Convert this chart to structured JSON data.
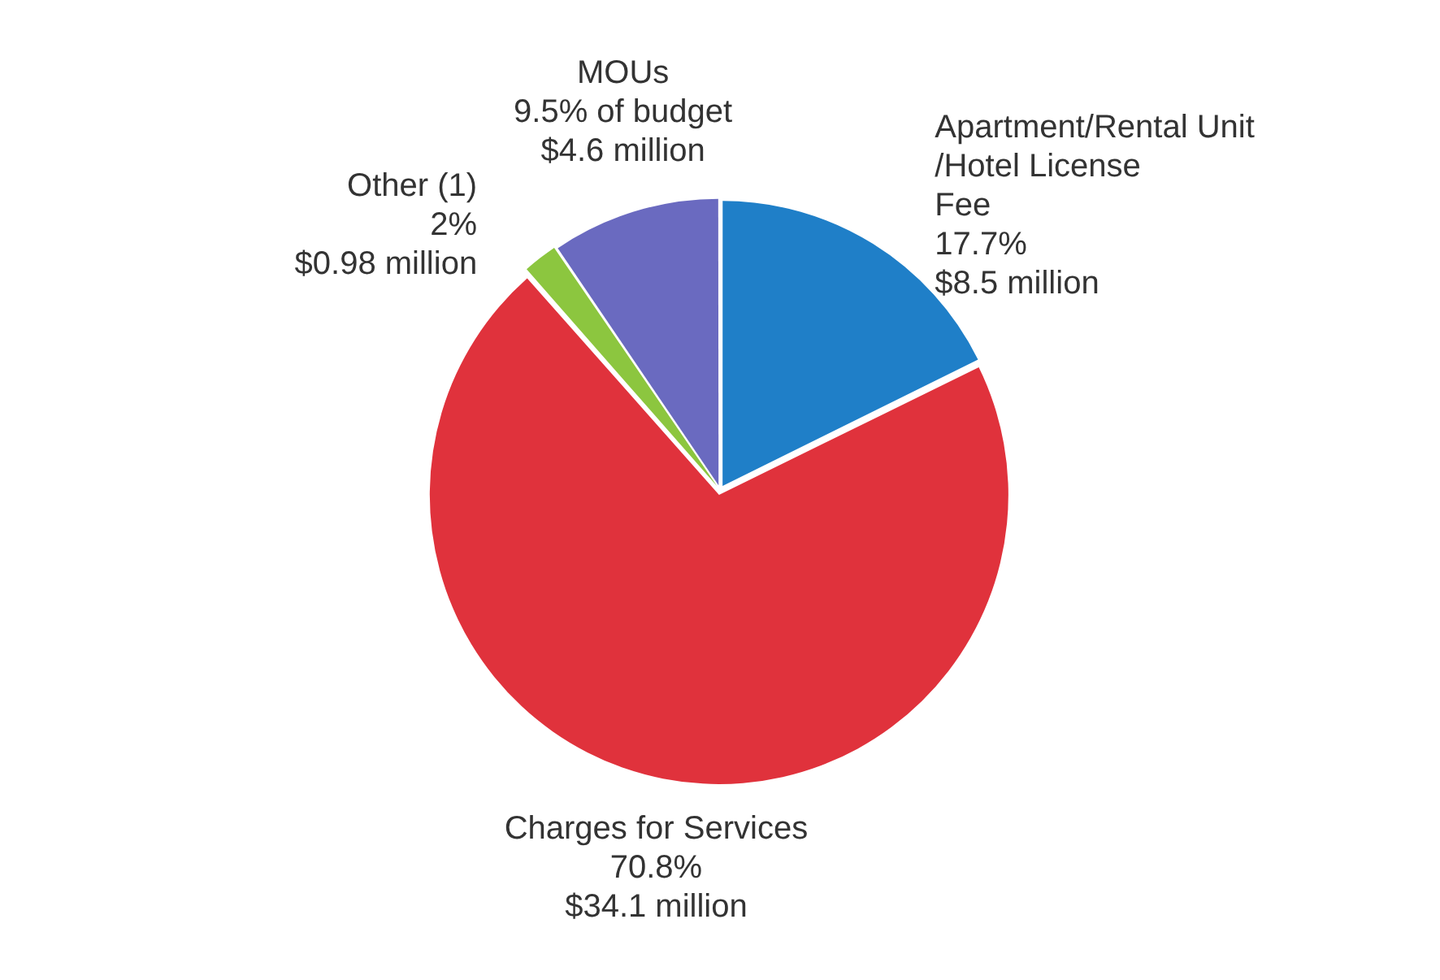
{
  "chart_data": {
    "type": "pie",
    "categories": [
      "Apartment/Rental Unit/Hotel License Fee",
      "Charges for Services",
      "Other (1)",
      "MOUs"
    ],
    "values": [
      17.7,
      70.8,
      2,
      9.5
    ],
    "value_labels": [
      "17.7%\n$8.5 million",
      "70.8%\n$34.1 million",
      "2%\n$0.98 million",
      "9.5% of budget\n$4.6 million"
    ],
    "colors": [
      "#1f7fc8",
      "#e0323c",
      "#8cc63f",
      "#6a6ac0"
    ],
    "legend": false
  }
}
